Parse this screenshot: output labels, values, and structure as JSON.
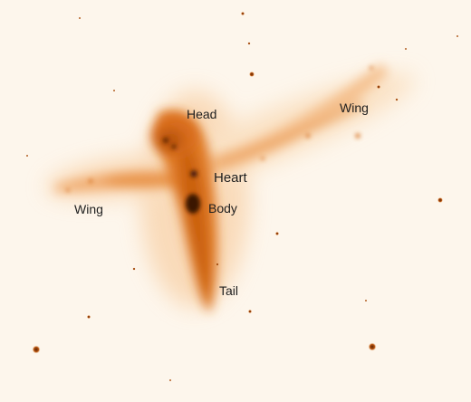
{
  "labels": {
    "head": "Head",
    "wing_right": "Wing",
    "heart": "Heart",
    "body": "Body",
    "wing_left": "Wing",
    "tail": "Tail"
  },
  "colors": {
    "background": "#fdf6ec",
    "nebula_core": "#c85e10",
    "nebula_glow": "#f0a35a",
    "dark_core": "#3a1606",
    "star": "#b8540f"
  }
}
